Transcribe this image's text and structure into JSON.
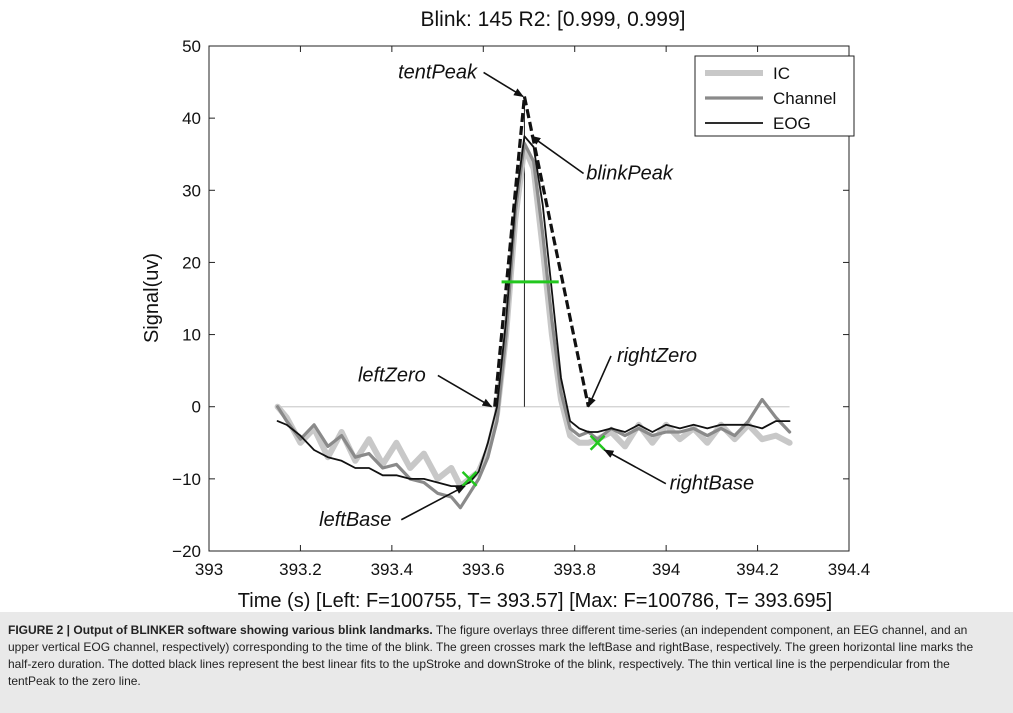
{
  "chart_data": {
    "type": "line",
    "title": "Blink: 145   R2: [0.999, 0.999]",
    "xlabel": "Time (s) [Left: F=100755, T= 393.57] [Max: F=100786, T= 393.695]",
    "ylabel": "Signal(uv)",
    "xlim": [
      393,
      394.4
    ],
    "ylim": [
      -20,
      50
    ],
    "xticks": [
      393,
      393.2,
      393.4,
      393.6,
      393.8,
      394,
      394.2,
      394.4
    ],
    "xtick_labels": [
      "393",
      "393.2",
      "393.4",
      "393.6",
      "393.8",
      "394",
      "394.2",
      "394.4"
    ],
    "yticks": [
      -20,
      -10,
      0,
      10,
      20,
      30,
      40,
      50
    ],
    "ytick_labels": [
      "−20",
      "−10",
      "0",
      "10",
      "20",
      "30",
      "40",
      "50"
    ],
    "legend_position": "top-right",
    "grid": false,
    "series": [
      {
        "name": "IC",
        "color": "#c8c8c8",
        "x": [
          393.15,
          393.17,
          393.2,
          393.23,
          393.26,
          393.29,
          393.32,
          393.35,
          393.38,
          393.41,
          393.44,
          393.47,
          393.5,
          393.53,
          393.55,
          393.57,
          393.59,
          393.61,
          393.63,
          393.65,
          393.67,
          393.69,
          393.71,
          393.73,
          393.75,
          393.77,
          393.79,
          393.81,
          393.83,
          393.85,
          393.88,
          393.91,
          393.94,
          393.97,
          394.0,
          394.03,
          394.06,
          394.09,
          394.12,
          394.15,
          394.18,
          394.21,
          394.24,
          394.27
        ],
        "y": [
          0,
          -1.5,
          -5,
          -3,
          -7,
          -3.5,
          -7.5,
          -4.5,
          -8,
          -5,
          -8.5,
          -6.5,
          -10,
          -8.5,
          -11,
          -10,
          -9,
          -6,
          -1,
          10,
          26,
          36,
          33,
          22,
          10,
          1,
          -4,
          -5,
          -5,
          -4.5,
          -3.5,
          -5.5,
          -2.5,
          -5,
          -2.5,
          -4.5,
          -3,
          -5,
          -2.5,
          -4.5,
          -2.5,
          -4.5,
          -4,
          -5
        ]
      },
      {
        "name": "Channel",
        "color": "#8a8a8a",
        "x": [
          393.15,
          393.17,
          393.2,
          393.23,
          393.26,
          393.29,
          393.32,
          393.35,
          393.38,
          393.41,
          393.44,
          393.47,
          393.5,
          393.53,
          393.55,
          393.57,
          393.59,
          393.61,
          393.63,
          393.65,
          393.67,
          393.69,
          393.71,
          393.73,
          393.75,
          393.77,
          393.79,
          393.81,
          393.83,
          393.85,
          393.88,
          393.91,
          393.94,
          393.97,
          394.0,
          394.03,
          394.06,
          394.09,
          394.12,
          394.15,
          394.18,
          394.21,
          394.24,
          394.27
        ],
        "y": [
          0,
          -2,
          -4.5,
          -2.5,
          -5.5,
          -4,
          -7,
          -6.5,
          -8.5,
          -8,
          -10,
          -10.5,
          -12,
          -12.5,
          -14,
          -12,
          -10,
          -7,
          -2,
          10,
          27,
          36.5,
          34,
          24,
          12,
          2,
          -3,
          -4,
          -3.5,
          -4.5,
          -3,
          -4,
          -3,
          -4,
          -3.5,
          -3.5,
          -3,
          -4,
          -3,
          -4,
          -2,
          1,
          -1.5,
          -3.5
        ]
      },
      {
        "name": "EOG",
        "color": "#111111",
        "x": [
          393.15,
          393.17,
          393.2,
          393.23,
          393.26,
          393.29,
          393.32,
          393.35,
          393.38,
          393.41,
          393.44,
          393.47,
          393.5,
          393.53,
          393.55,
          393.57,
          393.59,
          393.61,
          393.63,
          393.65,
          393.67,
          393.69,
          393.71,
          393.73,
          393.75,
          393.77,
          393.79,
          393.81,
          393.83,
          393.85,
          393.88,
          393.91,
          393.94,
          393.97,
          394.0,
          394.03,
          394.06,
          394.09,
          394.12,
          394.15,
          394.18,
          394.21,
          394.24,
          394.27
        ],
        "y": [
          -2,
          -2.5,
          -4,
          -6,
          -7,
          -7.5,
          -8.5,
          -8.5,
          -9.5,
          -9.5,
          -10,
          -10,
          -10.5,
          -11,
          -11,
          -10.5,
          -9,
          -5,
          0,
          12,
          28,
          37.5,
          36,
          28,
          16,
          4,
          -2,
          -3,
          -3.5,
          -3.5,
          -3,
          -3.5,
          -2.5,
          -3.5,
          -2.5,
          -3,
          -2.5,
          -3,
          -2.5,
          -2.5,
          -2.5,
          -3,
          -2,
          -2
        ]
      }
    ],
    "fit_lines": [
      {
        "label": "upStroke fit",
        "x": [
          393.625,
          393.69
        ],
        "y": [
          0,
          43
        ]
      },
      {
        "label": "downStroke fit",
        "x": [
          393.69,
          393.83
        ],
        "y": [
          43,
          0
        ]
      }
    ],
    "zero_line": {
      "y": 0,
      "x": [
        393.15,
        394.27
      ]
    },
    "tent_peak_vertical": {
      "x": 393.69,
      "y": [
        0,
        43
      ]
    },
    "half_zero_duration": {
      "y": 17.3,
      "x": [
        393.64,
        393.765
      ]
    },
    "markers": [
      {
        "label": "leftBase",
        "x": 393.57,
        "y": -10
      },
      {
        "label": "rightBase",
        "x": 393.85,
        "y": -5
      }
    ],
    "annotations": [
      {
        "text": "tentPeak",
        "x": 393.5,
        "y": 45.5,
        "target": [
          393.687,
          43
        ]
      },
      {
        "text": "blinkPeak",
        "x": 393.92,
        "y": 31.5,
        "target": [
          393.705,
          37.5
        ]
      },
      {
        "text": "leftZero",
        "x": 393.4,
        "y": 3.5,
        "target": [
          393.618,
          0
        ]
      },
      {
        "text": "rightZero",
        "x": 393.98,
        "y": 6.2,
        "target": [
          393.83,
          0
        ]
      },
      {
        "text": "rightBase",
        "x": 394.1,
        "y": -11.5,
        "target": [
          393.865,
          -6
        ]
      },
      {
        "text": "leftBase",
        "x": 393.32,
        "y": -16.5,
        "target": [
          393.56,
          -11
        ]
      }
    ]
  },
  "caption": {
    "title": "FIGURE 2 | Output of BLINKER software showing various blink landmarks.",
    "body": " The figure overlays three different time-series (an independent component, an EEG channel, and an upper vertical EOG channel, respectively) corresponding to the time of the blink. The green crosses mark the leftBase and rightBase, respectively. The green horizontal line marks the half-zero duration. The dotted black lines represent the best linear fits to the upStroke and downStroke of the blink, respectively. The thin vertical line is the perpendicular from the tentPeak to the zero line."
  }
}
